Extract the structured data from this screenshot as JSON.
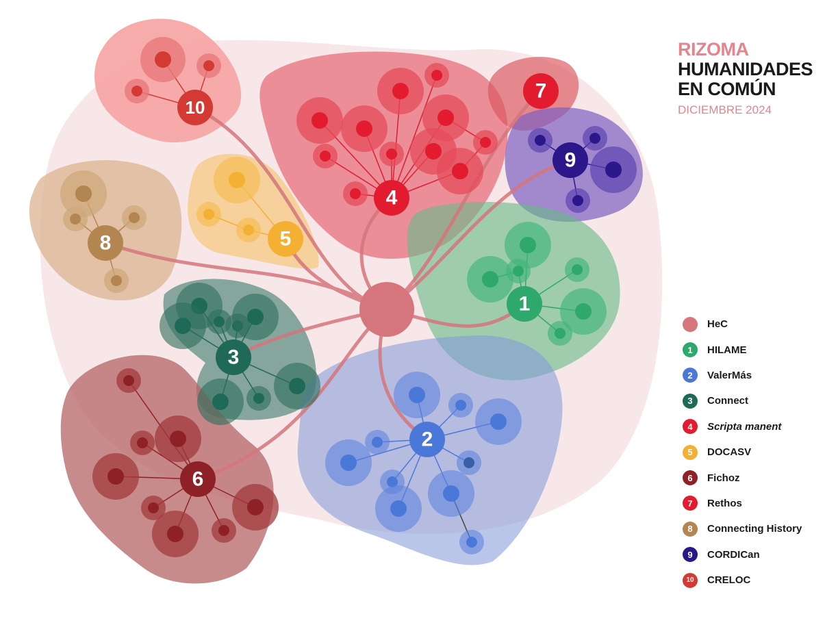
{
  "title": {
    "line1": "RIZOMA",
    "line2": "HUMANIDADES",
    "line3": "EN COMÚN",
    "date": "DICIEMBRE 2024"
  },
  "center_node": {
    "name": "HeC",
    "color": "#d4767c"
  },
  "projects": [
    {
      "number": "1",
      "name": "HILAME",
      "color": "#2ea86b",
      "italic": false
    },
    {
      "number": "2",
      "name": "ValerMás",
      "color": "#4a78d8",
      "italic": false
    },
    {
      "number": "3",
      "name": "Connect",
      "color": "#1f6a56",
      "italic": false
    },
    {
      "number": "4",
      "name": "Scripta manent",
      "color": "#e21b2e",
      "italic": true
    },
    {
      "number": "5",
      "name": "DOCASV",
      "color": "#f3b033",
      "italic": false
    },
    {
      "number": "6",
      "name": "Fichoz",
      "color": "#8e2125",
      "italic": false
    },
    {
      "number": "7",
      "name": "Rethos",
      "color": "#e21b2e",
      "italic": false
    },
    {
      "number": "8",
      "name": "Connecting History",
      "color": "#b38550",
      "italic": false
    },
    {
      "number": "9",
      "name": "CORDICan",
      "color": "#2b178a",
      "italic": false
    },
    {
      "number": "10",
      "name": "CRELOC",
      "color": "#d33a34",
      "italic": false
    }
  ]
}
